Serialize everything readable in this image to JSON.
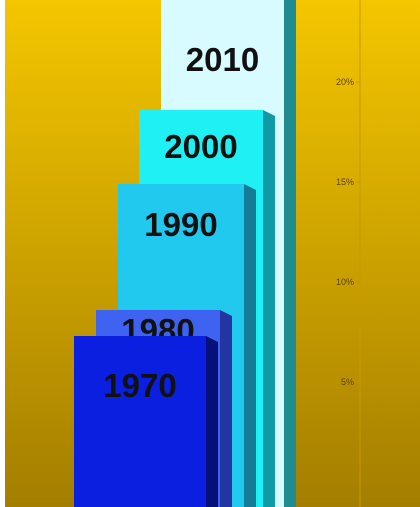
{
  "chart_data": {
    "type": "bar",
    "categories": [
      "1970",
      "1980",
      "1990",
      "2000",
      "2010"
    ],
    "values": [
      7.3,
      8.6,
      14.9,
      18.6,
      25.5
    ],
    "ylim": [
      0,
      25.5
    ],
    "yticks": [
      "5%",
      "10%",
      "15%",
      "20%"
    ],
    "ytick_values": [
      5,
      10,
      15,
      20
    ],
    "grid": false,
    "legend": "none",
    "background_gradient": [
      "#f4c600",
      "#a47e00"
    ],
    "bar_colors": [
      "#0a1fe0",
      "#3d63f0",
      "#22c9ee",
      "#1ff0f4",
      "#d8fbff"
    ],
    "bar_side_colors": [
      "#06107a",
      "#2235a0",
      "#137d99",
      "#109aa6",
      "#1f8c8f"
    ]
  }
}
